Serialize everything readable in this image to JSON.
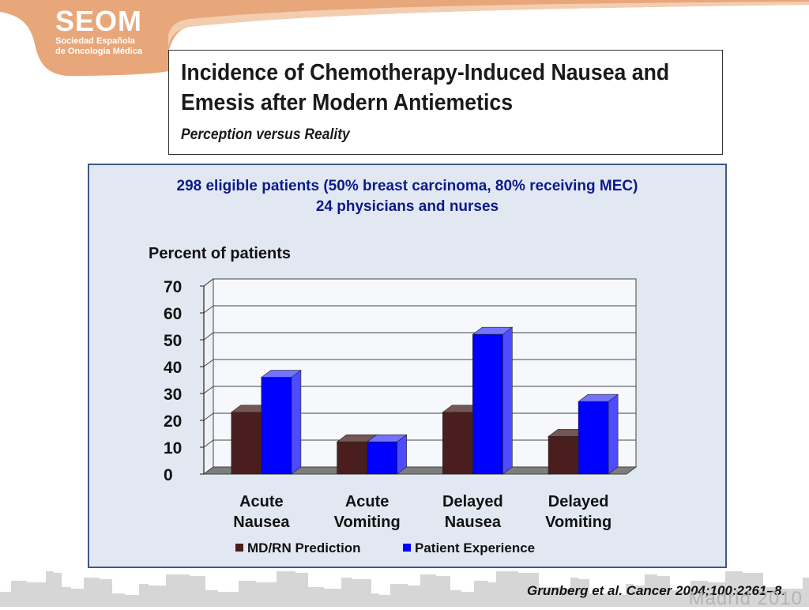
{
  "logo": {
    "name": "SEOM",
    "line1": "Sociedad Española",
    "line2": "de Oncología Médica"
  },
  "title": {
    "line1": "Incidence of Chemotherapy-Induced Nausea and",
    "line2": "Emesis after Modern Antiemetics",
    "subtitle": "Perception versus Reality"
  },
  "info": {
    "line1": "298 eligible patients (50% breast carcinoma, 80% receiving MEC)",
    "line2": "24 physicians and nurses"
  },
  "citation": "Grunberg et al. Cancer 2004;100:2261–8.",
  "watermark": "Madrid 2010",
  "colors": {
    "logo_orange": "#e8a77a",
    "panel_bg": "#e2e8f2",
    "panel_border": "#3c5a86",
    "info_text": "#0b1a8c",
    "series_prediction": "#4a1e1e",
    "series_experience": "#0000ff"
  },
  "chart_data": {
    "type": "bar",
    "title": "",
    "ylabel": "Percent of patients",
    "xlabel": "",
    "ylim": [
      0,
      70
    ],
    "yticks": [
      0,
      10,
      20,
      30,
      40,
      50,
      60,
      70
    ],
    "grid": true,
    "legend_position": "bottom",
    "categories": [
      [
        "Acute",
        "Nausea"
      ],
      [
        "Acute",
        "Vomiting"
      ],
      [
        "Delayed",
        "Nausea"
      ],
      [
        "Delayed",
        "Vomiting"
      ]
    ],
    "series": [
      {
        "name": "MD/RN Prediction",
        "values": [
          23,
          12,
          23,
          14
        ]
      },
      {
        "name": "Patient Experience",
        "values": [
          36,
          12,
          52,
          27
        ]
      }
    ]
  }
}
